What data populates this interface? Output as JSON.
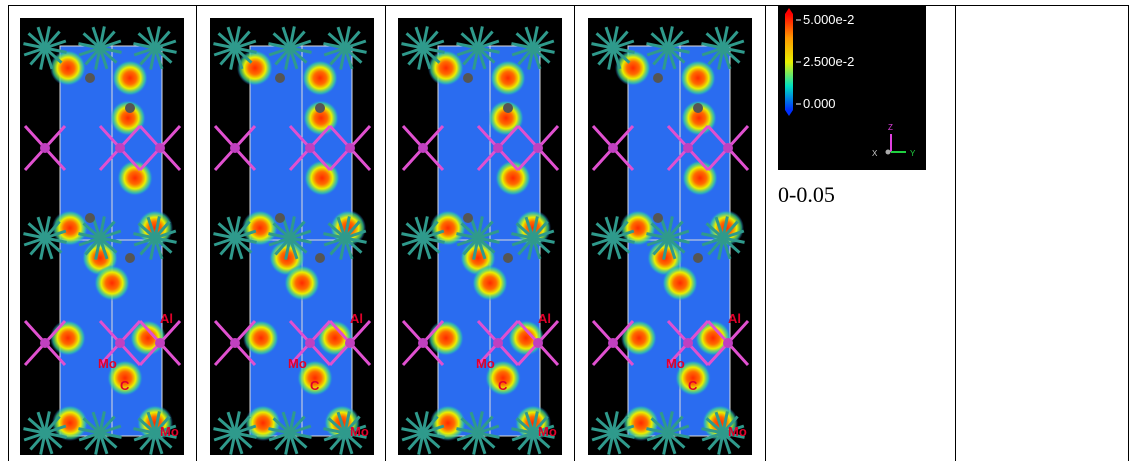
{
  "panels": [
    {
      "labels": [
        "Al",
        "Mo",
        "C",
        "Mo"
      ]
    },
    {
      "labels": [
        "Al",
        "Mo",
        "C",
        "Mo"
      ]
    },
    {
      "labels": [
        "Al",
        "Mo",
        "C",
        "Mo"
      ]
    },
    {
      "labels": [
        "Al",
        "Mo",
        "C",
        "Mo"
      ]
    }
  ],
  "legend": {
    "ticks": [
      "5.000e-2",
      "2.500e-2",
      "0.000"
    ],
    "axes": [
      "Z",
      "X",
      "Y"
    ]
  },
  "caption": "0-0.05"
}
